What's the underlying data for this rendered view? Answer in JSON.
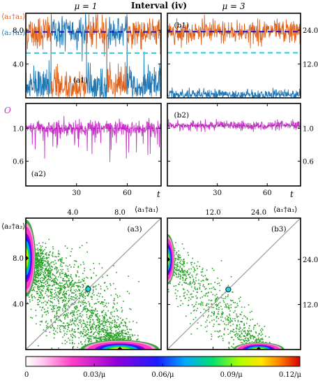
{
  "figure": {
    "title": "Interval (iv)",
    "mu_left": "μ = 1",
    "mu_right": "μ = 3",
    "legend_a1": "⟨a₁†a₁⟩",
    "legend_a2": "⟨a₂†a₂⟩",
    "legend_O": "O",
    "xlabel_t": "t",
    "xlabel_a1": "⟨a₁†a₁⟩",
    "ylabel_a2": "⟨a₂†a₂⟩",
    "colors": {
      "a1": "#e0601a",
      "a2": "#1f77b4",
      "O": "#cc33cc",
      "dash_mean": "#1a1acc",
      "dash_ref": "#22d3e0",
      "diag": "#9a9a9a"
    }
  },
  "chart_data": [
    {
      "id": "a1",
      "type": "line",
      "panel_label": "(a1)",
      "series": [
        {
          "name": "⟨a₁†a₁⟩",
          "color": "#e0601a",
          "mean": 7.8,
          "range": [
            0.2,
            9.8
          ]
        },
        {
          "name": "⟨a₂†a₂⟩",
          "color": "#1f77b4",
          "mean": 7.8,
          "range": [
            0.2,
            9.8
          ]
        }
      ],
      "switch_times": [
        15,
        36,
        48,
        60
      ],
      "mean_line": 7.8,
      "reference_line": 5.3,
      "xlim": [
        0,
        80
      ],
      "ylim": [
        0,
        10
      ],
      "yticks": [
        4.0,
        8.0
      ],
      "ytick_labels": [
        "4.0",
        "8.0"
      ]
    },
    {
      "id": "b1",
      "type": "line",
      "panel_label": "(b1)",
      "series": [
        {
          "name": "⟨a₁†a₁⟩",
          "color": "#e0601a",
          "mean": 23.4,
          "range": [
            18,
            29
          ]
        },
        {
          "name": "⟨a₂†a₂⟩",
          "color": "#1f77b4",
          "mean": 1.5,
          "range": [
            0,
            5
          ]
        }
      ],
      "mean_line": 23.5,
      "reference_line": 16.0,
      "xlim": [
        0,
        80
      ],
      "ylim": [
        0,
        30
      ],
      "yticks": [
        12.0,
        24.0
      ],
      "ytick_labels": [
        "12.0",
        "24.0"
      ]
    },
    {
      "id": "a2",
      "type": "line",
      "panel_label": "(a2)",
      "series": [
        {
          "name": "O",
          "color": "#cc33cc",
          "mean": 1.0,
          "range": [
            0.58,
            1.15
          ]
        }
      ],
      "mean_line": 1.0,
      "xlim": [
        0,
        80
      ],
      "ylim": [
        0.3,
        1.3
      ],
      "yticks": [
        0.6,
        1.0
      ],
      "ytick_labels": [
        "0.6",
        "1.0"
      ],
      "xticks": [
        30,
        60
      ],
      "xtick_labels": [
        "30",
        "60"
      ]
    },
    {
      "id": "b2",
      "type": "line",
      "panel_label": "(b2)",
      "series": [
        {
          "name": "O",
          "color": "#cc33cc",
          "mean": 1.03,
          "range": [
            0.93,
            1.11
          ]
        }
      ],
      "mean_line": 1.03,
      "xlim": [
        0,
        80
      ],
      "ylim": [
        0.3,
        1.3
      ],
      "yticks": [
        0.6,
        1.0
      ],
      "ytick_labels": [
        "0.6",
        "1.0"
      ],
      "xticks": [
        30,
        60
      ],
      "xtick_labels": [
        "30",
        "60"
      ]
    },
    {
      "id": "a3",
      "type": "heatmap",
      "panel_label": "(a3)",
      "xlim": [
        0,
        11.5
      ],
      "ylim": [
        0,
        11.5
      ],
      "xticks": [
        4.0,
        8.0
      ],
      "xtick_labels": [
        "4.0",
        "8.0"
      ],
      "yticks": [
        4.0,
        8.0
      ],
      "ytick_labels": [
        "4.0",
        "8.0"
      ],
      "clusters": [
        {
          "x": 0.0,
          "y": 8.0,
          "sx": 0.35,
          "sy": 1.4
        },
        {
          "x": 8.0,
          "y": 0.0,
          "sx": 1.4,
          "sy": 0.35
        }
      ],
      "marker_center": [
        5.3,
        5.3
      ]
    },
    {
      "id": "b3",
      "type": "heatmap",
      "panel_label": "(b3)",
      "xlim": [
        0,
        35
      ],
      "ylim": [
        0,
        35
      ],
      "xticks": [
        12.0,
        24.0
      ],
      "xtick_labels": [
        "12.0",
        "24.0"
      ],
      "yticks": [
        12.0,
        24.0
      ],
      "ytick_labels": [
        "12.0",
        "24.0"
      ],
      "clusters": [
        {
          "x": 0.0,
          "y": 24.0,
          "sx": 0.8,
          "sy": 2.8
        },
        {
          "x": 24.0,
          "y": 0.0,
          "sx": 2.8,
          "sy": 0.8
        }
      ],
      "marker_center": [
        16.0,
        16.0
      ]
    },
    {
      "id": "colorbar",
      "type": "colorbar",
      "tick_labels": [
        "0",
        "0.03/μ",
        "0.06/μ",
        "0.09/μ",
        "0.12/μ"
      ],
      "range": [
        0,
        0.12
      ],
      "stops": [
        "#ffffff",
        "#ff66cc",
        "#9900cc",
        "#0000ff",
        "#00aaff",
        "#00ff66",
        "#ffff00",
        "#ff6600",
        "#cc0000"
      ]
    }
  ]
}
